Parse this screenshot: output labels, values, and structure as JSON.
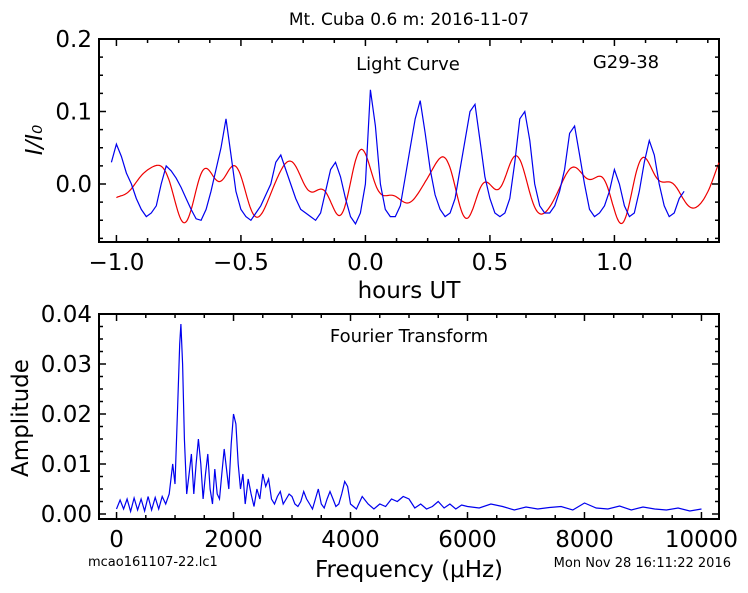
{
  "figure_title": "Mt. Cuba 0.6 m:  2016-11-07",
  "footer": {
    "filename": "mcao161107-22.lc1",
    "timestamp": "Mon Nov 28 16:11:22 2016"
  },
  "colors": {
    "data": "#0000ee",
    "model": "#ee0000",
    "axes": "#000000"
  },
  "chart_data": [
    {
      "type": "line",
      "title": "Light Curve",
      "annotation": "G29-38",
      "xlabel": "hours UT",
      "ylabel": "I/I₀",
      "xlim": [
        -1.07,
        1.42
      ],
      "ylim": [
        -0.08,
        0.2
      ],
      "xticks": [
        -1.0,
        -0.5,
        0.0,
        0.5,
        1.0
      ],
      "xtick_labels": [
        "−1.0",
        "−0.5",
        "0.0",
        "0.5",
        "1.0"
      ],
      "yticks": [
        0.0,
        0.1,
        0.2
      ],
      "ytick_labels": [
        "0.0",
        "0.1",
        "0.2"
      ],
      "grid": false,
      "series": [
        {
          "role": "data",
          "x": [
            -1.02,
            -1.0,
            -0.98,
            -0.96,
            -0.94,
            -0.92,
            -0.9,
            -0.88,
            -0.86,
            -0.84,
            -0.82,
            -0.8,
            -0.78,
            -0.76,
            -0.74,
            -0.72,
            -0.7,
            -0.68,
            -0.66,
            -0.64,
            -0.62,
            -0.6,
            -0.58,
            -0.56,
            -0.54,
            -0.52,
            -0.5,
            -0.48,
            -0.46,
            -0.44,
            -0.42,
            -0.4,
            -0.38,
            -0.36,
            -0.34,
            -0.32,
            -0.3,
            -0.28,
            -0.26,
            -0.24,
            -0.22,
            -0.2,
            -0.18,
            -0.16,
            -0.14,
            -0.12,
            -0.1,
            -0.08,
            -0.06,
            -0.04,
            -0.02,
            0.0,
            0.02,
            0.04,
            0.06,
            0.08,
            0.1,
            0.12,
            0.14,
            0.16,
            0.18,
            0.2,
            0.22,
            0.24,
            0.26,
            0.28,
            0.3,
            0.32,
            0.34,
            0.36,
            0.38,
            0.4,
            0.42,
            0.44,
            0.46,
            0.48,
            0.5,
            0.52,
            0.54,
            0.56,
            0.58,
            0.6,
            0.62,
            0.64,
            0.66,
            0.68,
            0.7,
            0.72,
            0.74,
            0.76,
            0.78,
            0.8,
            0.82,
            0.84,
            0.86,
            0.88,
            0.9,
            0.92,
            0.94,
            0.96,
            0.98,
            1.0,
            1.02,
            1.04,
            1.06,
            1.08,
            1.1,
            1.12,
            1.14,
            1.16,
            1.18,
            1.2,
            1.22,
            1.24,
            1.26,
            1.28
          ],
          "y": [
            0.03,
            0.055,
            0.038,
            0.015,
            0.0,
            -0.02,
            -0.035,
            -0.045,
            -0.04,
            -0.03,
            0.0,
            0.025,
            0.018,
            0.008,
            -0.005,
            -0.02,
            -0.035,
            -0.048,
            -0.05,
            -0.035,
            -0.01,
            0.02,
            0.05,
            0.09,
            0.04,
            -0.01,
            -0.035,
            -0.045,
            -0.05,
            -0.04,
            -0.03,
            -0.015,
            0.0,
            0.03,
            0.04,
            0.02,
            0.0,
            -0.02,
            -0.035,
            -0.04,
            -0.045,
            -0.05,
            -0.04,
            -0.01,
            0.02,
            0.03,
            0.01,
            -0.02,
            -0.045,
            -0.055,
            -0.04,
            0.0,
            0.13,
            0.08,
            0.0,
            -0.035,
            -0.045,
            -0.045,
            -0.03,
            0.01,
            0.05,
            0.09,
            0.115,
            0.07,
            0.02,
            -0.015,
            -0.035,
            -0.045,
            -0.04,
            -0.02,
            0.02,
            0.06,
            0.1,
            0.11,
            0.06,
            0.01,
            -0.02,
            -0.04,
            -0.045,
            -0.04,
            -0.02,
            0.03,
            0.09,
            0.1,
            0.06,
            0.0,
            -0.03,
            -0.04,
            -0.04,
            -0.03,
            -0.01,
            0.02,
            0.07,
            0.08,
            0.04,
            0.0,
            -0.035,
            -0.045,
            -0.04,
            -0.03,
            -0.01,
            0.02,
            0.0,
            -0.03,
            -0.045,
            -0.04,
            -0.01,
            0.03,
            0.06,
            0.04,
            0.0,
            -0.03,
            -0.045,
            -0.04,
            -0.02,
            -0.01
          ]
        },
        {
          "role": "model",
          "model_fit": {
            "components": [
              {
                "amplitude": 0.03,
                "period_hours": 0.289,
                "phase": 0.0
              },
              {
                "amplitude": 0.016,
                "period_hours": 0.161,
                "phase": 0.6
              },
              {
                "amplitude": 0.008,
                "period_hours": 0.125,
                "phase": 1.4
              }
            ],
            "offset": -0.003
          }
        }
      ]
    },
    {
      "type": "line",
      "title": "Fourier Transform",
      "xlabel": "Frequency (μHz)",
      "ylabel": "Amplitude",
      "xlim": [
        -300,
        10300
      ],
      "ylim": [
        -0.001,
        0.04
      ],
      "xticks": [
        0,
        2000,
        4000,
        6000,
        8000,
        10000
      ],
      "xtick_labels": [
        "0",
        "2000",
        "4000",
        "6000",
        "8000",
        "10000"
      ],
      "yticks": [
        0.0,
        0.01,
        0.02,
        0.03,
        0.04
      ],
      "ytick_labels": [
        "0.00",
        "0.01",
        "0.02",
        "0.03",
        "0.04"
      ],
      "grid": false,
      "series": [
        {
          "role": "data",
          "x": [
            0,
            60,
            120,
            180,
            240,
            300,
            360,
            420,
            480,
            540,
            600,
            660,
            720,
            780,
            840,
            900,
            960,
            1000,
            1040,
            1080,
            1100,
            1130,
            1160,
            1200,
            1240,
            1280,
            1320,
            1360,
            1400,
            1440,
            1480,
            1520,
            1560,
            1600,
            1640,
            1680,
            1720,
            1760,
            1800,
            1840,
            1880,
            1920,
            1960,
            2000,
            2040,
            2080,
            2120,
            2160,
            2200,
            2250,
            2300,
            2350,
            2400,
            2450,
            2500,
            2550,
            2600,
            2650,
            2700,
            2750,
            2800,
            2850,
            2900,
            2950,
            3000,
            3050,
            3100,
            3150,
            3200,
            3250,
            3300,
            3350,
            3400,
            3450,
            3500,
            3550,
            3600,
            3650,
            3700,
            3750,
            3800,
            3850,
            3900,
            3950,
            4000,
            4100,
            4200,
            4300,
            4400,
            4500,
            4600,
            4700,
            4800,
            4900,
            5000,
            5100,
            5200,
            5300,
            5400,
            5500,
            5600,
            5700,
            5800,
            5900,
            6000,
            6200,
            6400,
            6600,
            6800,
            7000,
            7200,
            7400,
            7600,
            7800,
            8000,
            8200,
            8400,
            8600,
            8800,
            9000,
            9200,
            9400,
            9600,
            9800,
            10000
          ],
          "y": [
            0.001,
            0.0028,
            0.001,
            0.003,
            0.0005,
            0.0032,
            0.0008,
            0.003,
            0.0006,
            0.0035,
            0.0008,
            0.0033,
            0.001,
            0.0035,
            0.002,
            0.004,
            0.01,
            0.006,
            0.02,
            0.034,
            0.038,
            0.03,
            0.015,
            0.004,
            0.008,
            0.012,
            0.004,
            0.01,
            0.015,
            0.01,
            0.003,
            0.008,
            0.012,
            0.005,
            0.002,
            0.009,
            0.004,
            0.003,
            0.008,
            0.013,
            0.009,
            0.005,
            0.014,
            0.02,
            0.018,
            0.01,
            0.005,
            0.008,
            0.002,
            0.007,
            0.004,
            0.0015,
            0.005,
            0.003,
            0.008,
            0.0055,
            0.007,
            0.003,
            0.002,
            0.0035,
            0.0045,
            0.002,
            0.003,
            0.004,
            0.0035,
            0.002,
            0.0015,
            0.0025,
            0.0045,
            0.003,
            0.002,
            0.001,
            0.003,
            0.005,
            0.002,
            0.0012,
            0.003,
            0.0045,
            0.003,
            0.0015,
            0.002,
            0.004,
            0.0065,
            0.0055,
            0.002,
            0.001,
            0.0035,
            0.002,
            0.001,
            0.002,
            0.0015,
            0.003,
            0.0025,
            0.0035,
            0.003,
            0.0012,
            0.002,
            0.001,
            0.0015,
            0.0025,
            0.0012,
            0.002,
            0.001,
            0.0018,
            0.0015,
            0.0012,
            0.002,
            0.0015,
            0.0008,
            0.0014,
            0.001,
            0.0013,
            0.0015,
            0.0008,
            0.0022,
            0.0012,
            0.001,
            0.0016,
            0.0008,
            0.0014,
            0.001,
            0.0008,
            0.0012,
            0.0006,
            0.001
          ]
        }
      ]
    }
  ]
}
